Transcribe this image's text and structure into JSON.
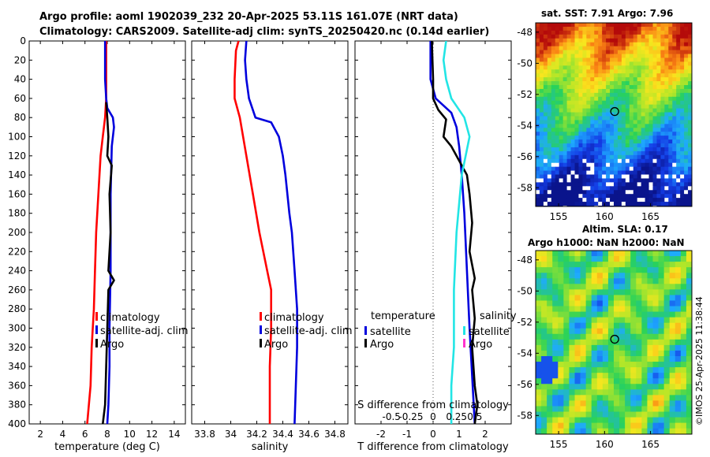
{
  "header": {
    "title_line1": "Argo profile: aoml 1902039_232 20-Apr-2025 53.11S 161.07E (NRT data)",
    "title_line2": "Climatology: CARS2009. Satellite-adj clim: synTS_20250420.nc (0.14d earlier)"
  },
  "credit": "©IMOS 25-Apr-2025 11:38:44",
  "colors": {
    "climatology": "#ff0000",
    "satellite": "#0000dd",
    "argo": "#000000",
    "sat_salinity": "#22e5e5",
    "argo_salinity": "#ff33cc"
  },
  "chart_data": [
    {
      "type": "line",
      "title": "",
      "xlabel": "temperature (deg C)",
      "ylabel": "",
      "xlim": [
        1,
        15
      ],
      "ylim": [
        400,
        0
      ],
      "xticks": [
        2,
        4,
        6,
        8,
        10,
        12,
        14
      ],
      "yticks": [
        0,
        20,
        40,
        60,
        80,
        100,
        120,
        140,
        160,
        180,
        200,
        220,
        240,
        260,
        280,
        300,
        320,
        340,
        360,
        380,
        400
      ],
      "legend": [
        "climatology",
        "satellite-adj. clim",
        "Argo"
      ],
      "series": [
        {
          "name": "climatology",
          "color": "#ff0000",
          "points": [
            [
              7.9,
              0
            ],
            [
              7.9,
              40
            ],
            [
              7.9,
              60
            ],
            [
              7.8,
              80
            ],
            [
              7.6,
              100
            ],
            [
              7.4,
              120
            ],
            [
              7.3,
              140
            ],
            [
              7.2,
              160
            ],
            [
              7.1,
              180
            ],
            [
              7.0,
              200
            ],
            [
              6.9,
              240
            ],
            [
              6.8,
              280
            ],
            [
              6.6,
              320
            ],
            [
              6.5,
              360
            ],
            [
              6.2,
              400
            ]
          ]
        },
        {
          "name": "satellite-adj. clim",
          "color": "#0000dd",
          "points": [
            [
              7.8,
              0
            ],
            [
              7.8,
              40
            ],
            [
              7.9,
              60
            ],
            [
              8.0,
              70
            ],
            [
              8.5,
              80
            ],
            [
              8.6,
              90
            ],
            [
              8.4,
              110
            ],
            [
              8.3,
              160
            ],
            [
              8.3,
              240
            ],
            [
              8.2,
              300
            ],
            [
              8.2,
              340
            ],
            [
              8.1,
              380
            ],
            [
              8.0,
              400
            ]
          ]
        },
        {
          "name": "Argo",
          "color": "#000000",
          "points": [
            [
              7.9,
              64
            ],
            [
              8.0,
              80
            ],
            [
              8.1,
              100
            ],
            [
              8.0,
              120
            ],
            [
              8.4,
              130
            ],
            [
              8.2,
              160
            ],
            [
              8.3,
              200
            ],
            [
              8.1,
              240
            ],
            [
              8.6,
              250
            ],
            [
              8.1,
              260
            ],
            [
              8.0,
              300
            ],
            [
              7.9,
              340
            ],
            [
              7.8,
              380
            ],
            [
              7.6,
              400
            ]
          ]
        }
      ]
    },
    {
      "type": "line",
      "xlabel": "salinity",
      "xlim": [
        33.7,
        34.9
      ],
      "ylim": [
        400,
        0
      ],
      "xticks": [
        33.8,
        34,
        34.2,
        34.4,
        34.6,
        34.8
      ],
      "legend": [
        "climatology",
        "satellite-adj. clim",
        "Argo"
      ],
      "series": [
        {
          "name": "climatology",
          "color": "#ff0000",
          "points": [
            [
              34.06,
              0
            ],
            [
              34.04,
              10
            ],
            [
              34.03,
              40
            ],
            [
              34.03,
              60
            ],
            [
              34.07,
              80
            ],
            [
              34.12,
              120
            ],
            [
              34.17,
              160
            ],
            [
              34.22,
              200
            ],
            [
              34.28,
              240
            ],
            [
              34.31,
              260
            ],
            [
              34.31,
              300
            ],
            [
              34.3,
              340
            ],
            [
              34.3,
              400
            ]
          ]
        },
        {
          "name": "satellite-adj. clim",
          "color": "#0000dd",
          "points": [
            [
              34.12,
              0
            ],
            [
              34.11,
              20
            ],
            [
              34.12,
              40
            ],
            [
              34.14,
              60
            ],
            [
              34.19,
              80
            ],
            [
              34.31,
              85
            ],
            [
              34.37,
              100
            ],
            [
              34.4,
              120
            ],
            [
              34.42,
              140
            ],
            [
              34.45,
              180
            ],
            [
              34.47,
              200
            ],
            [
              34.49,
              240
            ],
            [
              34.51,
              280
            ],
            [
              34.51,
              320
            ],
            [
              34.5,
              360
            ],
            [
              34.49,
              400
            ]
          ]
        }
      ]
    },
    {
      "type": "line",
      "xlabel": "T difference from climatology",
      "xlabel_top": "S difference from climatology",
      "xlim": [
        -3,
        3
      ],
      "ylim": [
        400,
        0
      ],
      "xticks": [
        -2,
        -1,
        0,
        1,
        2
      ],
      "xticks_top": [
        "-0.5",
        "-0.25",
        "0",
        "0.25",
        "0.5"
      ],
      "legend_temperature_title": "temperature",
      "legend_salinity_title": "salinity",
      "legend_temperature": [
        "satellite",
        "Argo"
      ],
      "legend_salinity": [
        "satellite",
        "Argo"
      ],
      "series": [
        {
          "name": "T satellite",
          "color": "#0000dd",
          "points": [
            [
              -0.1,
              0
            ],
            [
              -0.1,
              40
            ],
            [
              0.1,
              60
            ],
            [
              0.7,
              75
            ],
            [
              0.9,
              90
            ],
            [
              1.0,
              110
            ],
            [
              1.1,
              140
            ],
            [
              1.2,
              180
            ],
            [
              1.3,
              240
            ],
            [
              1.4,
              300
            ],
            [
              1.5,
              350
            ],
            [
              1.6,
              400
            ]
          ]
        },
        {
          "name": "T Argo",
          "color": "#000000",
          "points": [
            [
              -0.05,
              0
            ],
            [
              0,
              40
            ],
            [
              0,
              60
            ],
            [
              0.2,
              72
            ],
            [
              0.5,
              82
            ],
            [
              0.4,
              100
            ],
            [
              0.7,
              110
            ],
            [
              1.0,
              125
            ],
            [
              1.3,
              140
            ],
            [
              1.4,
              160
            ],
            [
              1.5,
              190
            ],
            [
              1.4,
              220
            ],
            [
              1.6,
              248
            ],
            [
              1.5,
              260
            ],
            [
              1.6,
              290
            ],
            [
              1.5,
              320
            ],
            [
              1.6,
              360
            ],
            [
              1.7,
              380
            ],
            [
              1.6,
              400
            ]
          ]
        },
        {
          "name": "S satellite",
          "color": "#22e5e5",
          "points": [
            [
              0.5,
              0
            ],
            [
              0.4,
              20
            ],
            [
              0.5,
              40
            ],
            [
              0.7,
              60
            ],
            [
              1.2,
              80
            ],
            [
              1.4,
              100
            ],
            [
              1.1,
              140
            ],
            [
              0.9,
              200
            ],
            [
              0.8,
              260
            ],
            [
              0.8,
              320
            ],
            [
              0.7,
              360
            ],
            [
              0.7,
              400
            ]
          ]
        }
      ]
    },
    {
      "type": "heatmap",
      "title": "sat. SST: 7.91 Argo: 7.96",
      "xticks": [
        155,
        160,
        165
      ],
      "yticks": [
        -48,
        -50,
        -52,
        -54,
        -56,
        -58
      ],
      "xlim": [
        152.5,
        169.5
      ],
      "ylim": [
        -59.2,
        -47.4
      ],
      "marker": [
        161.1,
        -53.1
      ]
    },
    {
      "type": "heatmap",
      "title_line1": "Altim. SLA: 0.17",
      "title_line2": "Argo h1000: NaN h2000: NaN",
      "xticks": [
        155,
        160,
        165
      ],
      "yticks": [
        -48,
        -50,
        -52,
        -54,
        -56,
        -58
      ],
      "xlim": [
        152.5,
        169.5
      ],
      "ylim": [
        -59.2,
        -47.4
      ],
      "marker": [
        161.1,
        -53.1
      ]
    }
  ]
}
